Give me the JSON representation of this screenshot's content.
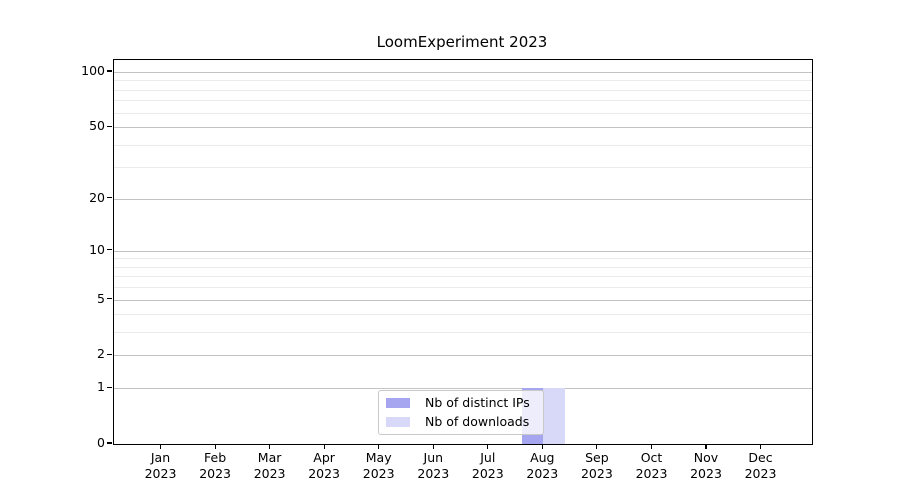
{
  "chart_data": {
    "type": "bar",
    "title": "LoomExperiment 2023",
    "categories": [
      "Jan",
      "Feb",
      "Mar",
      "Apr",
      "May",
      "Jun",
      "Jul",
      "Aug",
      "Sep",
      "Oct",
      "Nov",
      "Dec"
    ],
    "category_year": "2023",
    "series": [
      {
        "name": "Nb of distinct IPs",
        "color": "#a5a5f0",
        "values": [
          0,
          0,
          0,
          0,
          0,
          0,
          0,
          1,
          0,
          0,
          0,
          0
        ]
      },
      {
        "name": "Nb of downloads",
        "color": "#d8d8f8",
        "values": [
          0,
          0,
          0,
          0,
          0,
          0,
          0,
          1,
          0,
          0,
          0,
          0
        ]
      }
    ],
    "xlabel": "",
    "ylabel": "",
    "y_scale": "log1p",
    "y_tick_values": [
      0,
      1,
      2,
      5,
      10,
      20,
      50,
      100
    ],
    "y_tick_labels": [
      "0",
      "1",
      "2",
      "5",
      "10",
      "20",
      "50",
      "100"
    ],
    "y_minor_gridlines": [
      3,
      4,
      6,
      7,
      8,
      9,
      30,
      40,
      60,
      70,
      80,
      90
    ],
    "ylim": [
      0,
      117
    ],
    "grid": true,
    "legend_position": "lower-center"
  },
  "legend": {
    "items": [
      {
        "label": "Nb of distinct IPs",
        "color": "#a5a5f0"
      },
      {
        "label": "Nb of downloads",
        "color": "#d8d8f8"
      }
    ]
  },
  "colors": {
    "major_grid": "#c3c3c3",
    "minor_grid": "#ebebeb",
    "axis": "#000000",
    "legend_border": "#c9c9c9"
  }
}
